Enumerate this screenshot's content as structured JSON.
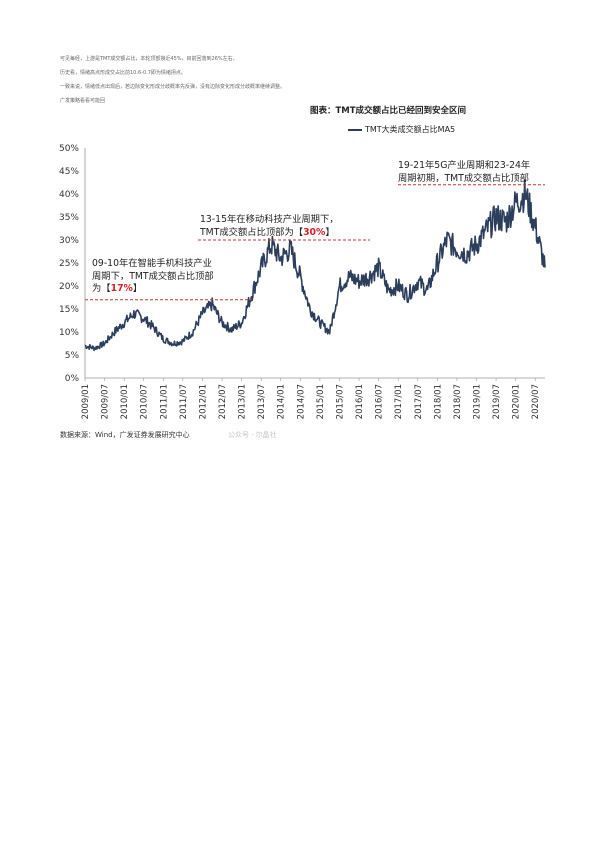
{
  "notes": [
    "可见每经，上游是TMT成交额占比，本轮顶部接近45%，目前回落到26%左右。",
    "历史看，情绪高点形成交占比前10.6-0.7即为情绪拐点。",
    "一致来说，情绪低点出现后，若边际变化形成分歧概率先反弹，没有边际变化形成分歧概率继续调整。",
    "广发策略看看可能回"
  ],
  "figure_title": "图表：TMT成交额占比已经回到安全区间",
  "source": "数据来源：Wind，广发证券发展研究中心",
  "watermark": "公众号 · 尔晶社",
  "annotations": [
    {
      "lines": [
        "09-10年在智能手机科技产业",
        "周期下，TMT成交额占比顶部"
      ],
      "last_pre": "为【",
      "highlight": "17%",
      "last_post": "】",
      "peak": 17
    },
    {
      "lines": [
        "13-15年在移动科技产业周期下，"
      ],
      "last_pre": "TMT成交额占比顶部为【",
      "highlight": "30%",
      "last_post": "】",
      "peak": 30
    },
    {
      "lines": [
        "19-21年5G产业周期和23-24年"
      ],
      "last_pre": "周期初期，TMT成交额占比顶部",
      "highlight": "",
      "last_post": "",
      "peak": 42
    }
  ],
  "chart_data": {
    "type": "line",
    "title": "图表：TMT成交额占比已经回到安全区间",
    "series": [
      {
        "name": "TMT大类成交额占比MA5",
        "color": "#2c3e5c",
        "x": [
          "2009/01",
          "2009/04",
          "2009/07",
          "2009/10",
          "2010/01",
          "2010/04",
          "2010/07",
          "2010/10",
          "2011/01",
          "2011/04",
          "2011/07",
          "2011/10",
          "2012/01",
          "2012/04",
          "2012/07",
          "2012/10",
          "2013/01",
          "2013/04",
          "2013/07",
          "2013/10",
          "2014/01",
          "2014/04",
          "2014/07",
          "2014/10",
          "2015/01",
          "2015/04",
          "2015/07",
          "2015/10",
          "2016/01",
          "2016/04",
          "2016/07",
          "2016/10",
          "2017/01",
          "2017/04",
          "2017/07",
          "2017/10",
          "2018/01",
          "2018/04",
          "2018/07",
          "2018/10",
          "2019/01",
          "2019/04",
          "2019/07",
          "2019/10",
          "2020/01",
          "2020/04",
          "2020/07",
          "2020/10"
        ],
        "y": [
          7,
          6.5,
          7.5,
          10,
          12,
          14,
          13,
          11,
          8.5,
          7.5,
          8,
          10,
          14,
          16,
          12,
          10.5,
          12,
          18,
          24,
          29,
          26,
          28,
          22,
          15,
          12,
          10,
          20,
          22,
          21,
          22,
          24,
          19,
          20,
          18,
          21,
          19,
          25,
          30,
          28,
          27,
          29,
          32,
          35,
          34,
          38,
          40,
          33,
          24
        ]
      }
    ],
    "x_ticks": [
      "2009/01",
      "2009/07",
      "2010/01",
      "2010/07",
      "2011/01",
      "2011/07",
      "2012/01",
      "2012/07",
      "2013/01",
      "2013/07",
      "2014/01",
      "2014/07",
      "2015/01",
      "2015/07",
      "2016/01",
      "2016/07",
      "2017/01",
      "2017/07",
      "2018/01",
      "2018/07",
      "2019/01",
      "2019/07",
      "2020/01",
      "2020/07"
    ],
    "y_ticks": [
      "0%",
      "5%",
      "10%",
      "15%",
      "20%",
      "25%",
      "30%",
      "35%",
      "40%",
      "45%",
      "50%"
    ],
    "ylim": [
      0,
      50
    ],
    "grid": false,
    "legend_position": "top-center"
  }
}
